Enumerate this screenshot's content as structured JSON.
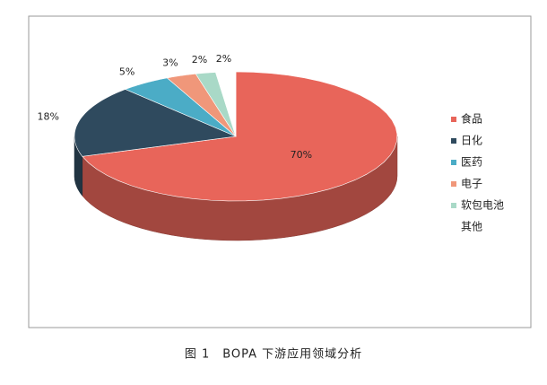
{
  "chart_data": {
    "type": "pie3d",
    "caption": "图 1　BOPA 下游应用领域分析",
    "categories": [
      "食品",
      "日化",
      "医药",
      "电子",
      "软包电池",
      "其他"
    ],
    "values": [
      70,
      18,
      5,
      3,
      2,
      2
    ],
    "value_labels": [
      "70%",
      "18%",
      "5%",
      "3%",
      "2%",
      "2%"
    ],
    "colors": [
      "#e8655a",
      "#2f4a5e",
      "#4bacc6",
      "#f0977a",
      "#a9d9c7",
      "#ffffff"
    ],
    "legend": "right"
  }
}
